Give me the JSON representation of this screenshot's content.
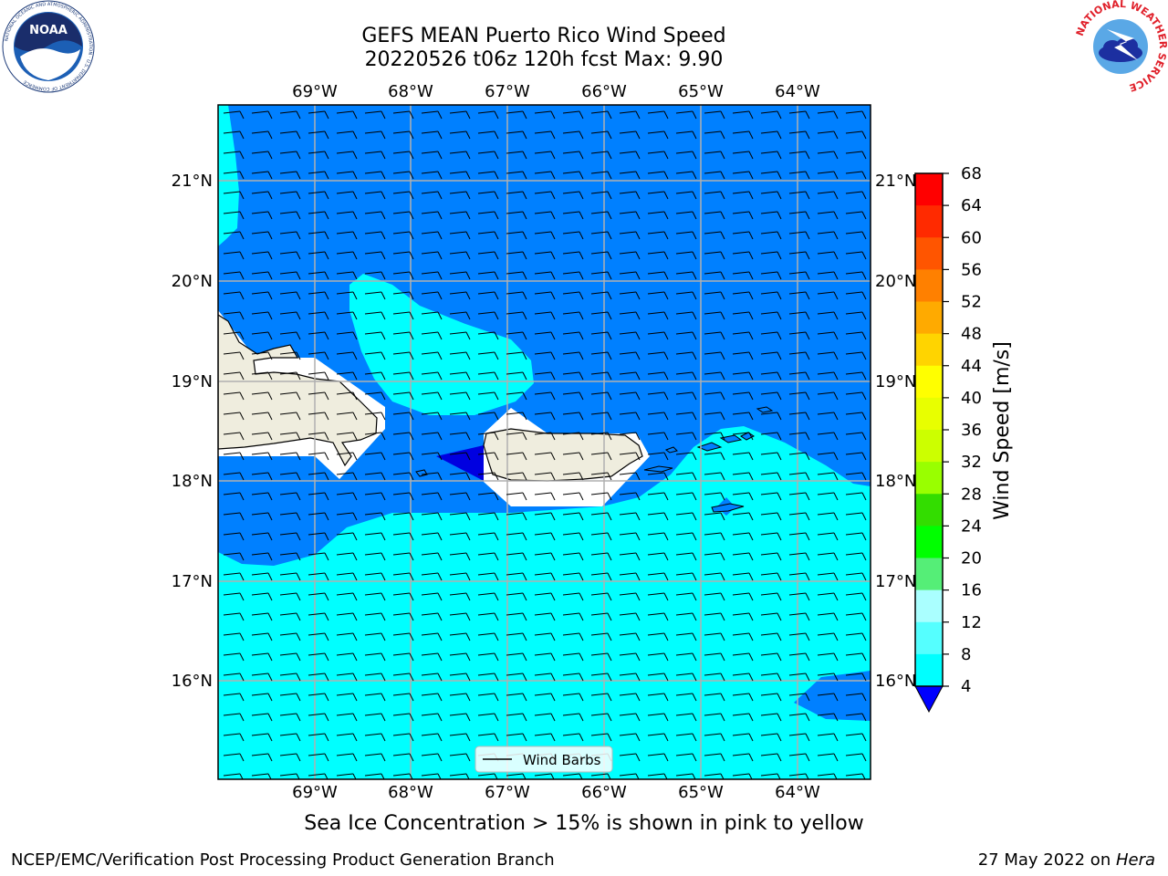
{
  "title": {
    "line1": "GEFS MEAN Puerto Rico Wind Speed",
    "line2": "20220526 t06z 120h fcst   Max: 9.90"
  },
  "logos": {
    "left": "NOAA",
    "left_ring_text": "NATIONAL OCEANIC AND ATMOSPHERIC ADMINISTRATION · U.S. DEPARTMENT OF COMMERCE",
    "right_ring_text": "NATIONAL WEATHER SERVICE"
  },
  "map": {
    "lon_labels": [
      "69°W",
      "68°W",
      "67°W",
      "66°W",
      "65°W",
      "64°W"
    ],
    "lat_labels": [
      "21°N",
      "20°N",
      "19°N",
      "18°N",
      "17°N",
      "16°N"
    ],
    "legend_label": "Wind Barbs",
    "colors": {
      "blue_4_8": "#0080ff",
      "cyan_8_12": "#00ffff",
      "below_4": "#0000e0",
      "land": "#efedde",
      "grid": "#b0b0b0"
    }
  },
  "colorbar": {
    "label": "Wind Speed [m/s]",
    "ticks": [
      "68",
      "64",
      "60",
      "56",
      "52",
      "48",
      "44",
      "40",
      "36",
      "32",
      "28",
      "24",
      "20",
      "16",
      "12",
      "8",
      "4"
    ],
    "colors": [
      "#ff0000",
      "#ff2a00",
      "#ff5500",
      "#ff8000",
      "#ffaa00",
      "#ffd400",
      "#ffff00",
      "#e8ff00",
      "#ccff00",
      "#99ff00",
      "#33dd00",
      "#00ff00",
      "#55ee77",
      "#aaffff",
      "#55ffff",
      "#00ffff",
      "#0080ff"
    ],
    "under_color": "#0000ff"
  },
  "captions": {
    "sea_ice": "Sea Ice Concentration > 15% is shown in pink to yellow",
    "footer_left": "NCEP/EMC/Verification Post Processing Product Generation Branch",
    "footer_right_prefix": "27 May 2022 on ",
    "footer_right_host": "Hera"
  }
}
